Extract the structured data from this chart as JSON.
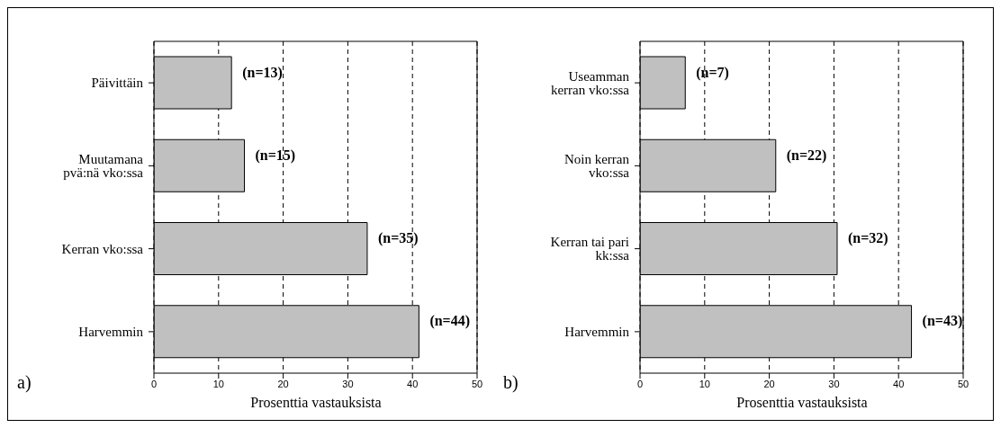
{
  "chart_data": [
    {
      "type": "bar",
      "orientation": "horizontal",
      "categories": [
        "Päivittäin",
        "Muutamana pvä:nä vko:ssa",
        "Kerran vko:ssa",
        "Harvemmin"
      ],
      "values": [
        12,
        14,
        33,
        41
      ],
      "color": "#c0c0c0",
      "xlim": [
        0,
        50
      ],
      "xticks": [
        0,
        10,
        20,
        30,
        40,
        50
      ],
      "grid": "x",
      "xlabel": "Prosenttia vastauksista",
      "annotations": [
        "a)",
        "(n=13)",
        "(n=15)",
        "(n=35)",
        "(n=44)"
      ]
    },
    {
      "type": "bar",
      "orientation": "horizontal",
      "categories": [
        "Useamman kerran vko:ssa",
        "Noin kerran vko:ssa",
        "Kerran tai pari kk:ssa",
        "Harvemmin"
      ],
      "values": [
        7,
        21,
        30.5,
        42
      ],
      "color": "#c0c0c0",
      "xlim": [
        0,
        50
      ],
      "xticks": [
        0,
        10,
        20,
        30,
        40,
        50
      ],
      "grid": "x",
      "xlabel": "Prosenttia vastauksista",
      "annotations": [
        "b)",
        "(n=7)",
        "(n=22)",
        "(n=32)",
        "(n=43)"
      ]
    }
  ]
}
